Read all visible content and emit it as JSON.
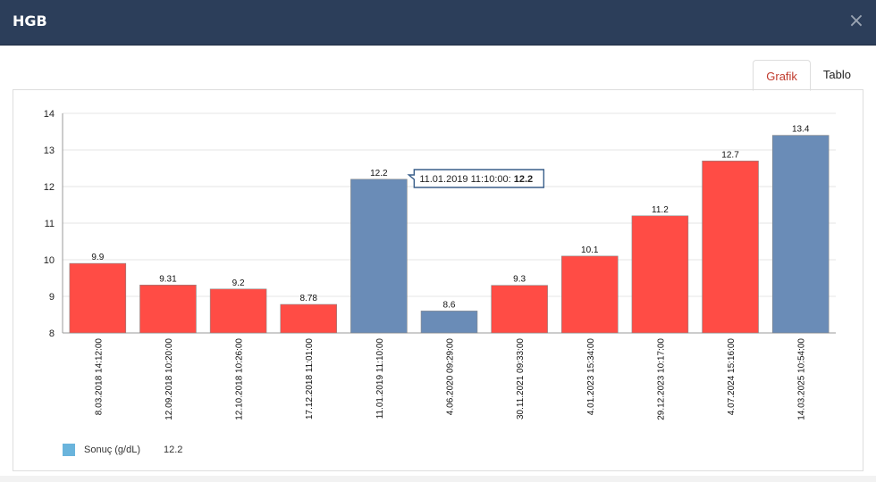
{
  "modal": {
    "title": "HGB",
    "close_icon": "×"
  },
  "tabs": [
    {
      "label": "Grafik",
      "active": true
    },
    {
      "label": "Tablo",
      "active": false
    }
  ],
  "colors": {
    "out_of_range": "#ff4c45",
    "in_range": "#6a8cb7",
    "legend": "#6ab4dc"
  },
  "chart_data": {
    "type": "bar",
    "categories": [
      "8.03.2018 14:12:00",
      "12.09.2018 10:20:00",
      "12.10.2018 10:26:00",
      "17.12.2018 11:01:00",
      "11.01.2019 11:10:00",
      "4.06.2020 09:29:00",
      "30.11.2021 09:33:00",
      "4.01.2023 15:34:00",
      "29.12.2023 10:17:00",
      "4.07.2024 15:16:00",
      "14.03.2025 10:54:00"
    ],
    "series": [
      {
        "name": "Sonuç (g/dL)",
        "values": [
          9.9,
          9.31,
          9.2,
          8.78,
          12.2,
          8.6,
          9.3,
          10.1,
          11.2,
          12.7,
          13.4
        ],
        "value_labels": [
          "9.9",
          "9.31",
          "9.2",
          "8.78",
          "12.2",
          "8.6",
          "9.3",
          "10.1",
          "11.2",
          "12.7",
          "13.4"
        ],
        "status": [
          "out",
          "out",
          "out",
          "out",
          "in",
          "in",
          "out",
          "out",
          "out",
          "out",
          "in"
        ]
      }
    ],
    "ylim": [
      8,
      14
    ],
    "yticks": [
      "8",
      "9",
      "10",
      "11",
      "12",
      "13",
      "14"
    ],
    "grid": true,
    "tooltip": {
      "index": 4,
      "label": "11.01.2019 11:10:00:",
      "value": "12.2"
    },
    "legend": {
      "label": "Sonuç (g/dL)",
      "value": "12.2",
      "placement": "bottom-left"
    }
  }
}
